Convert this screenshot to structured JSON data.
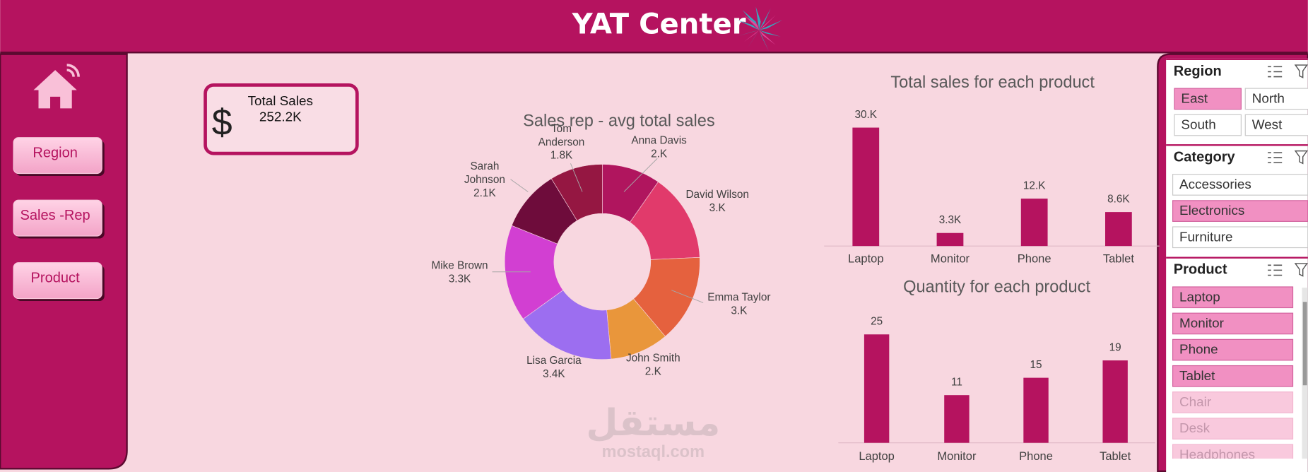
{
  "header": {
    "title": "YAT Center"
  },
  "navigation": {
    "buttons": [
      "Region",
      "Sales -Rep",
      "Product"
    ]
  },
  "kpi": {
    "label": "Total Sales",
    "symbol": "$",
    "value": "252.2K"
  },
  "chart_data": [
    {
      "type": "pie",
      "donut": true,
      "title": "Sales rep - avg total sales",
      "categories": [
        "Anna Davis",
        "David Wilson",
        "Emma Taylor",
        "John Smith",
        "Lisa Garcia",
        "Mike Brown",
        "Sarah Johnson",
        "Tom Anderson"
      ],
      "values": [
        2000,
        3000,
        3000,
        2000,
        3400,
        3300,
        2100,
        1800
      ],
      "value_labels": [
        "2.K",
        "3.K",
        "3.K",
        "2.K",
        "3.4K",
        "3.3K",
        "2.1K",
        "1.8K"
      ],
      "colors": [
        "#b0155e",
        "#e13a6b",
        "#e5613e",
        "#e9963b",
        "#9c6ef0",
        "#d23fd2",
        "#6e0c3b",
        "#951742"
      ]
    },
    {
      "type": "bar",
      "title": "Total sales for each product",
      "categories": [
        "Laptop",
        "Monitor",
        "Phone",
        "Tablet"
      ],
      "values": [
        30000,
        3300,
        12000,
        8600
      ],
      "value_labels": [
        "30.K",
        "3.3K",
        "12.K",
        "8.6K"
      ],
      "color": "#b5135f"
    },
    {
      "type": "bar",
      "title": "Quantity for each product",
      "categories": [
        "Laptop",
        "Monitor",
        "Phone",
        "Tablet"
      ],
      "values": [
        25,
        11,
        15,
        19
      ],
      "color": "#b5135f"
    }
  ],
  "slicers": [
    {
      "title": "Region",
      "columns": 2,
      "items": [
        {
          "label": "East",
          "selected": true
        },
        {
          "label": "North",
          "selected": false
        },
        {
          "label": "South",
          "selected": false
        },
        {
          "label": "West",
          "selected": false
        }
      ]
    },
    {
      "title": "Category",
      "columns": 1,
      "items": [
        {
          "label": "Accessories",
          "selected": false
        },
        {
          "label": "Electronics",
          "selected": true
        },
        {
          "label": "Furniture",
          "selected": false
        }
      ]
    },
    {
      "title": "Product",
      "columns": 1,
      "items": [
        {
          "label": "Laptop",
          "selected": true
        },
        {
          "label": "Monitor",
          "selected": true
        },
        {
          "label": "Phone",
          "selected": true
        },
        {
          "label": "Tablet",
          "selected": true
        },
        {
          "label": "Chair",
          "selected": false,
          "available": false
        },
        {
          "label": "Desk",
          "selected": false,
          "available": false
        },
        {
          "label": "Headphones",
          "selected": false,
          "available": false
        }
      ]
    }
  ],
  "watermark": {
    "text": "مستقل",
    "url": "mostaql.com"
  }
}
